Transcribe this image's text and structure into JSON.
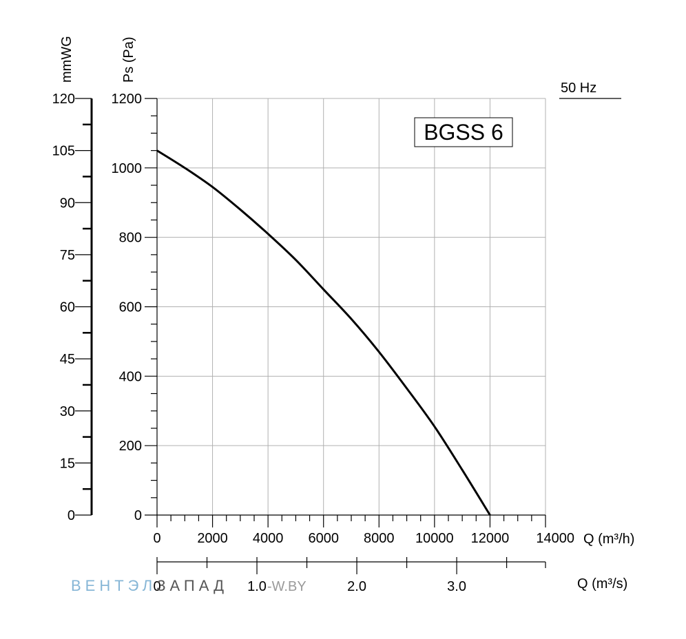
{
  "chart_data": {
    "type": "line",
    "title": "BGSS 6",
    "frequency_label": "50 Hz",
    "ylabel": "Ps (Pa)",
    "ylabel_secondary": "mmWG",
    "xlabel": "Q (m³/h)",
    "xlabel_secondary": "Q (m³/s)",
    "xlim": [
      0,
      14000
    ],
    "ylim": [
      0,
      1200
    ],
    "ylim_secondary": [
      0,
      120
    ],
    "x_ticks": [
      0,
      2000,
      4000,
      6000,
      8000,
      10000,
      12000,
      14000
    ],
    "y_ticks": [
      0,
      200,
      400,
      600,
      800,
      1000,
      1200
    ],
    "y_ticks_secondary": [
      0,
      15,
      30,
      45,
      60,
      75,
      90,
      105,
      120
    ],
    "x_ticks_secondary": [
      {
        "value": 0.0,
        "label": "0"
      },
      {
        "value": 1.0,
        "label": "1.0"
      },
      {
        "value": 2.0,
        "label": "2.0"
      },
      {
        "value": 3.0,
        "label": "3.0"
      }
    ],
    "x_secondary_unit_ratio": 3600,
    "grid": true,
    "series": [
      {
        "name": "BGSS 6",
        "x": [
          0,
          1000,
          2000,
          3000,
          4000,
          5000,
          6000,
          7000,
          8000,
          9000,
          10000,
          11000,
          12000
        ],
        "y": [
          1050,
          1000,
          945,
          880,
          810,
          735,
          650,
          565,
          470,
          365,
          255,
          130,
          0
        ]
      }
    ]
  },
  "watermark": {
    "brand_part1": "ВЕНТЭЛ",
    "brand_part2": "ЗАПАД",
    "site": "-W.BY"
  }
}
